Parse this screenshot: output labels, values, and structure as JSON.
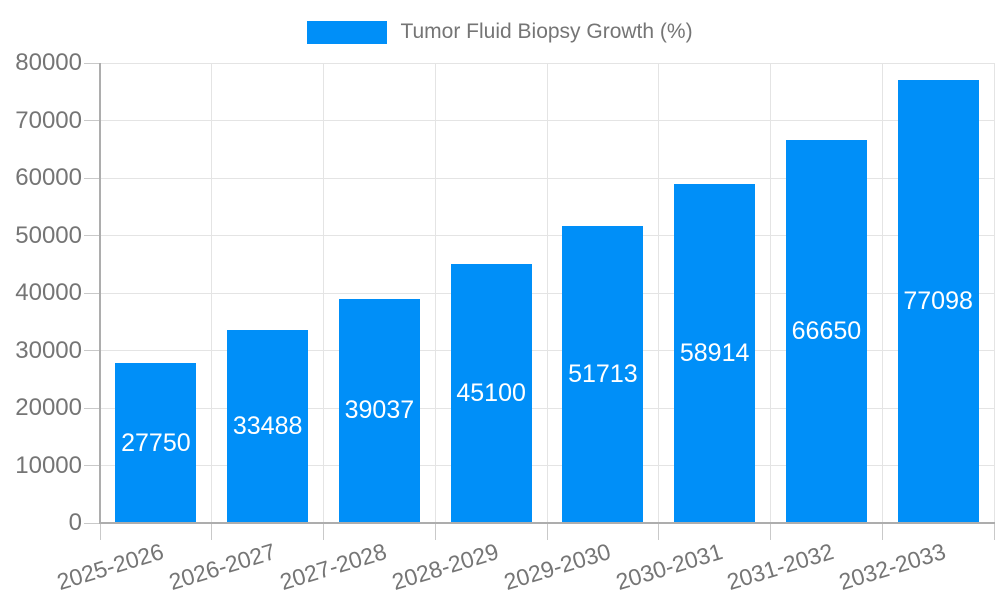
{
  "chart_data": {
    "type": "bar",
    "series_name": "Tumor Fluid Biopsy Growth (%)",
    "categories": [
      "2025-2026",
      "2026-2027",
      "2027-2028",
      "2028-2029",
      "2029-2030",
      "2030-2031",
      "2031-2032",
      "2032-2033"
    ],
    "values": [
      27750,
      33488,
      39037,
      45100,
      51713,
      58914,
      66650,
      77098
    ],
    "xlabel": "",
    "ylabel": "",
    "ylim": [
      0,
      80000
    ],
    "ytick_labels": [
      "0",
      "10000",
      "20000",
      "30000",
      "40000",
      "50000",
      "60000",
      "70000",
      "80000"
    ],
    "grid": true,
    "legend_position": "top-center",
    "x_label_rotation_deg": -17,
    "bar_value_labels_inside": true,
    "colors": {
      "bar": "#008ff8",
      "bar_label": "#ffffff",
      "axis_text": "#757575",
      "gridline": "#e4e4e4",
      "axis_line": "#adadad",
      "tick": "#c9c9c9"
    }
  }
}
